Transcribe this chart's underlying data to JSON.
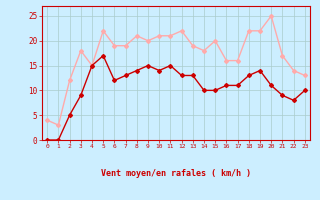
{
  "x": [
    0,
    1,
    2,
    3,
    4,
    5,
    6,
    7,
    8,
    9,
    10,
    11,
    12,
    13,
    14,
    15,
    16,
    17,
    18,
    19,
    20,
    21,
    22,
    23
  ],
  "wind_avg": [
    0,
    0,
    5,
    9,
    15,
    17,
    12,
    13,
    14,
    15,
    14,
    15,
    13,
    13,
    10,
    10,
    11,
    11,
    13,
    14,
    11,
    9,
    8,
    10
  ],
  "wind_gust": [
    4,
    3,
    12,
    18,
    15,
    22,
    19,
    19,
    21,
    20,
    21,
    21,
    22,
    19,
    18,
    20,
    16,
    16,
    22,
    22,
    25,
    17,
    14,
    13
  ],
  "color_avg": "#cc0000",
  "color_gust": "#ffaaaa",
  "bg_color": "#cceeff",
  "grid_color": "#aacccc",
  "xlabel": "Vent moyen/en rafales ( km/h )",
  "xlabel_color": "#cc0000",
  "tick_color": "#cc0000",
  "ylim": [
    0,
    27
  ],
  "yticks": [
    0,
    5,
    10,
    15,
    20,
    25
  ],
  "marker": "D",
  "markersize": 2,
  "linewidth": 1.0
}
